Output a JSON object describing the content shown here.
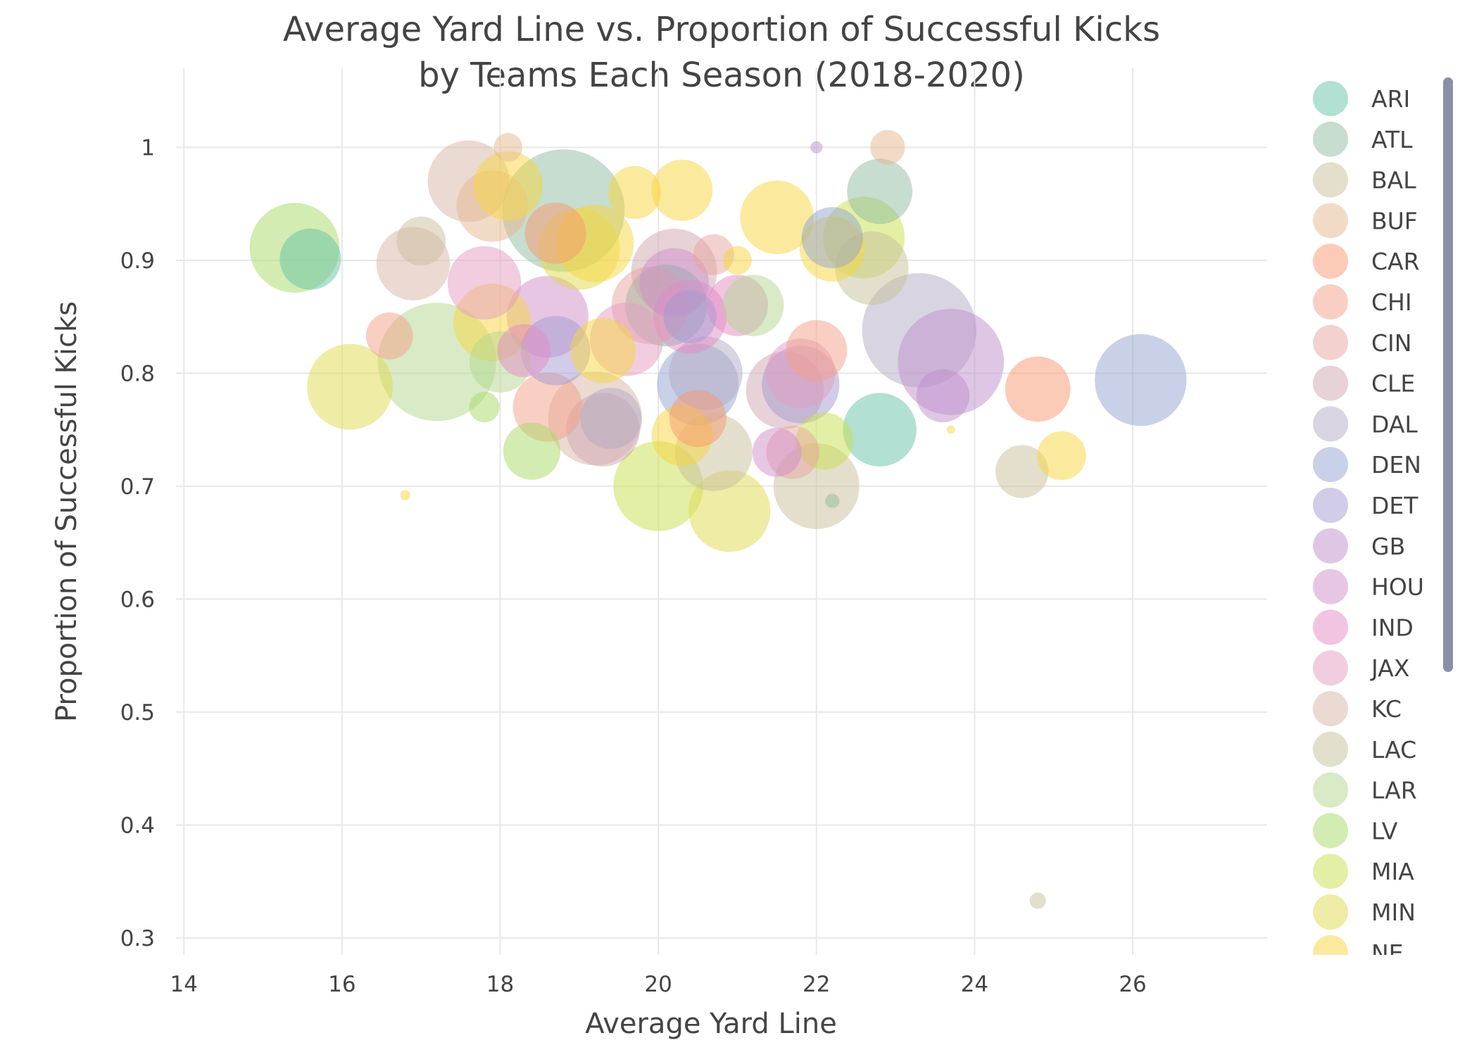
{
  "colors": {
    "ARI": "#66c2a5",
    "ATL": "#8fbc9f",
    "BAL": "#c9bd9a",
    "BUF": "#e5b78d",
    "CAR": "#f7976f",
    "CHI": "#f4a088",
    "CIN": "#e7a49d",
    "CLE": "#cfa6af",
    "DAL": "#b3a9c4",
    "DEN": "#92a3cf",
    "DET": "#a399cf",
    "GB": "#bd8fcb",
    "HOU": "#d08dc9",
    "IND": "#e489c6",
    "JAX": "#e49cbf",
    "KC": "#d7b6a6",
    "LAC": "#c8c09c",
    "LAR": "#b3d68e",
    "LV": "#a8da63",
    "MIA": "#c8e04c",
    "MIN": "#e0d94d",
    "NE": "#f7d63d"
  },
  "chart_data": {
    "type": "scatter",
    "title": "Average Yard Line vs. Proportion of Successful Kicks by Teams Each Season (2018-2020)",
    "title_lines": [
      "Average Yard Line vs. Proportion of Successful Kicks",
      "by Teams Each Season (2018-2020)"
    ],
    "xlabel": "Average Yard Line",
    "ylabel": "Proportion of Successful Kicks",
    "xlim": [
      13.9,
      27.7
    ],
    "ylim": [
      0.285,
      1.07
    ],
    "xticks": [
      14,
      16,
      18,
      20,
      22,
      24,
      26
    ],
    "yticks": [
      0.3,
      0.4,
      0.5,
      0.6,
      0.7,
      0.8,
      0.9,
      1
    ],
    "grid": true,
    "legend_position": "right",
    "legend_entries": [
      "ARI",
      "ATL",
      "BAL",
      "BUF",
      "CAR",
      "CHI",
      "CIN",
      "CLE",
      "DAL",
      "DEN",
      "DET",
      "GB",
      "HOU",
      "IND",
      "JAX",
      "KC",
      "LAC",
      "LAR",
      "LV",
      "MIA",
      "MIN",
      "NE"
    ],
    "marker_opacity": 0.5,
    "series": [
      {
        "name": "ARI",
        "points": [
          [
            15.6,
            0.901,
            30
          ],
          [
            22.8,
            0.75,
            36
          ],
          [
            20.1,
            0.86,
            40
          ]
        ]
      },
      {
        "name": "ATL",
        "points": [
          [
            18.8,
            0.944,
            60
          ],
          [
            22.8,
            0.961,
            32
          ],
          [
            22.2,
            0.687,
            7
          ]
        ]
      },
      {
        "name": "BAL",
        "points": [
          [
            22.0,
            0.7,
            42
          ],
          [
            17.0,
            0.917,
            24
          ],
          [
            24.6,
            0.713,
            26
          ]
        ]
      },
      {
        "name": "BUF",
        "points": [
          [
            18.1,
            1.0,
            14
          ],
          [
            22.9,
            1.0,
            17
          ],
          [
            17.9,
            0.948,
            35
          ]
        ]
      },
      {
        "name": "CAR",
        "points": [
          [
            24.8,
            0.786,
            32
          ],
          [
            18.7,
            0.924,
            30
          ],
          [
            20.5,
            0.76,
            28
          ]
        ]
      },
      {
        "name": "CHI",
        "points": [
          [
            16.6,
            0.833,
            23
          ],
          [
            18.6,
            0.77,
            34
          ],
          [
            22.0,
            0.82,
            30
          ]
        ]
      },
      {
        "name": "CIN",
        "points": [
          [
            21.7,
            0.73,
            26
          ],
          [
            19.9,
            0.86,
            38
          ],
          [
            20.7,
            0.905,
            20
          ]
        ]
      },
      {
        "name": "CLE",
        "points": [
          [
            20.2,
            0.89,
            42
          ],
          [
            21.6,
            0.785,
            38
          ],
          [
            19.3,
            0.75,
            36
          ]
        ]
      },
      {
        "name": "DAL",
        "points": [
          [
            23.3,
            0.838,
            56
          ],
          [
            19.4,
            0.76,
            30
          ],
          [
            20.6,
            0.8,
            36
          ]
        ]
      },
      {
        "name": "DEN",
        "points": [
          [
            26.1,
            0.794,
            45
          ],
          [
            20.5,
            0.79,
            40
          ],
          [
            22.2,
            0.92,
            30
          ]
        ]
      },
      {
        "name": "DET",
        "points": [
          [
            18.7,
            0.82,
            34
          ],
          [
            21.8,
            0.79,
            38
          ],
          [
            20.4,
            0.85,
            26
          ]
        ]
      },
      {
        "name": "GB",
        "points": [
          [
            23.7,
            0.81,
            52
          ],
          [
            22.0,
            1.0,
            6
          ],
          [
            23.6,
            0.78,
            26
          ]
        ]
      },
      {
        "name": "HOU",
        "points": [
          [
            20.2,
            0.88,
            34
          ],
          [
            21.5,
            0.73,
            24
          ],
          [
            18.6,
            0.85,
            40
          ]
        ]
      },
      {
        "name": "IND",
        "points": [
          [
            20.4,
            0.85,
            36
          ],
          [
            18.3,
            0.82,
            26
          ],
          [
            21.0,
            0.86,
            30
          ]
        ]
      },
      {
        "name": "JAX",
        "points": [
          [
            17.8,
            0.88,
            36
          ],
          [
            21.8,
            0.8,
            34
          ],
          [
            19.6,
            0.83,
            36
          ]
        ]
      },
      {
        "name": "KC",
        "points": [
          [
            17.6,
            0.97,
            40
          ],
          [
            16.9,
            0.897,
            36
          ],
          [
            19.2,
            0.76,
            46
          ]
        ]
      },
      {
        "name": "LAC",
        "points": [
          [
            24.8,
            0.333,
            8
          ],
          [
            22.7,
            0.893,
            36
          ],
          [
            20.7,
            0.73,
            38
          ]
        ]
      },
      {
        "name": "LAR",
        "points": [
          [
            17.2,
            0.81,
            58
          ],
          [
            18.0,
            0.81,
            30
          ],
          [
            21.2,
            0.86,
            30
          ]
        ]
      },
      {
        "name": "LV",
        "points": [
          [
            15.4,
            0.911,
            44
          ],
          [
            18.4,
            0.731,
            28
          ],
          [
            17.8,
            0.77,
            15
          ]
        ]
      },
      {
        "name": "MIA",
        "points": [
          [
            20.0,
            0.7,
            44
          ],
          [
            22.1,
            0.74,
            28
          ],
          [
            22.6,
            0.92,
            40
          ]
        ]
      },
      {
        "name": "MIN",
        "points": [
          [
            16.1,
            0.788,
            42
          ],
          [
            20.9,
            0.678,
            40
          ],
          [
            19.0,
            0.91,
            40
          ]
        ]
      },
      {
        "name": "NE",
        "points": [
          [
            16.8,
            0.692,
            5
          ],
          [
            20.3,
            0.962,
            30
          ],
          [
            21.5,
            0.938,
            36
          ],
          [
            25.1,
            0.727,
            24
          ],
          [
            23.7,
            0.75,
            4
          ],
          [
            19.7,
            0.96,
            26
          ],
          [
            19.2,
            0.915,
            38
          ],
          [
            18.1,
            0.966,
            34
          ],
          [
            17.9,
            0.845,
            38
          ],
          [
            20.3,
            0.745,
            30
          ],
          [
            22.2,
            0.91,
            32
          ],
          [
            19.3,
            0.82,
            32
          ],
          [
            21.0,
            0.9,
            14
          ]
        ]
      }
    ]
  }
}
